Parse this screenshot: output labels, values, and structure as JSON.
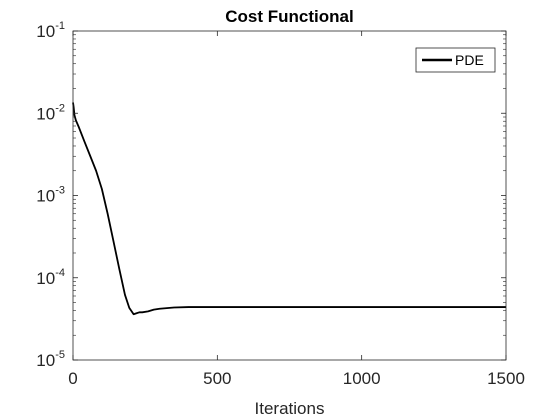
{
  "chart_data": {
    "type": "line",
    "title": "Cost Functional",
    "xlabel": "Iterations",
    "ylabel": "",
    "xlim": [
      0,
      1500
    ],
    "ylim": [
      1e-05,
      0.1
    ],
    "yscale": "log",
    "xticks": [
      0,
      500,
      1000,
      1500
    ],
    "xtick_labels": [
      "0",
      "500",
      "1000",
      "1500"
    ],
    "yticks": [
      1e-05,
      0.0001,
      0.001,
      0.01,
      0.1
    ],
    "ytick_labels": [
      {
        "base": "10",
        "exp": "-5"
      },
      {
        "base": "10",
        "exp": "-4"
      },
      {
        "base": "10",
        "exp": "-3"
      },
      {
        "base": "10",
        "exp": "-2"
      },
      {
        "base": "10",
        "exp": "-1"
      }
    ],
    "grid": false,
    "legend_position": "top-right",
    "series": [
      {
        "name": "PDE",
        "color": "#000000",
        "x": [
          0,
          2,
          5,
          10,
          20,
          40,
          60,
          80,
          100,
          120,
          140,
          160,
          180,
          195,
          210,
          220,
          230,
          240,
          260,
          280,
          300,
          350,
          400,
          500,
          600,
          700,
          800,
          900,
          1000,
          1100,
          1200,
          1300,
          1400,
          1500
        ],
        "y": [
          0.0135,
          0.012,
          0.0095,
          0.0082,
          0.0068,
          0.0045,
          0.003,
          0.002,
          0.0012,
          0.0006,
          0.00028,
          0.00013,
          6.2e-05,
          4.3e-05,
          3.6e-05,
          3.7e-05,
          3.8e-05,
          3.8e-05,
          3.9e-05,
          4.1e-05,
          4.2e-05,
          4.35e-05,
          4.4e-05,
          4.4e-05,
          4.4e-05,
          4.4e-05,
          4.4e-05,
          4.4e-05,
          4.4e-05,
          4.4e-05,
          4.4e-05,
          4.4e-05,
          4.4e-05,
          4.4e-05
        ]
      }
    ]
  }
}
